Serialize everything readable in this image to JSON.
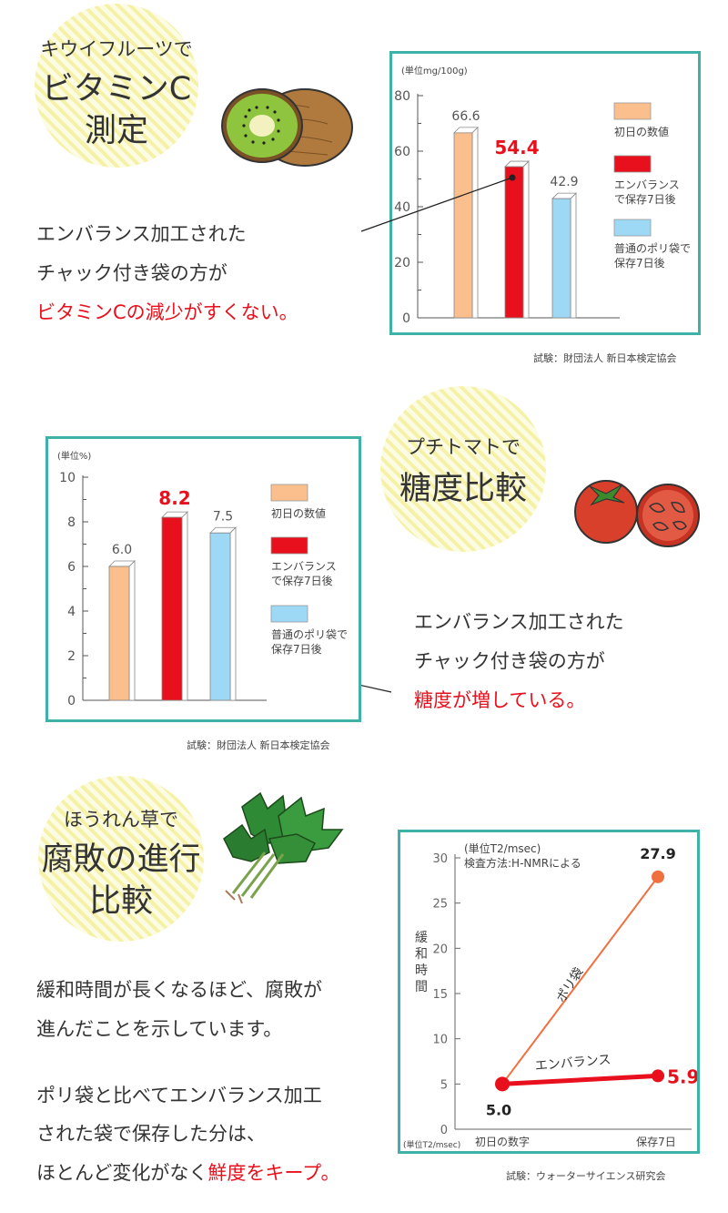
{
  "colors": {
    "accent": "#3fb2a8",
    "red": "#e8101c",
    "orange": "#fbbf8e",
    "blue": "#9dd8f4",
    "line_orange": "#f07040"
  },
  "section1": {
    "badge_small": "キウイフルーツで",
    "badge_big1": "ビタミンC",
    "badge_big2": "測定",
    "text1": "エンバランス加工された",
    "text2": "チャック付き袋の方が",
    "text3": "ビタミンCの減少がすくない。",
    "source": "試験：財団法人 新日本検定協会"
  },
  "section2": {
    "badge_small": "プチトマトで",
    "badge_big": "糖度比較",
    "text1": "エンバランス加工された",
    "text2": "チャック付き袋の方が",
    "text3": "糖度が増している。",
    "source": "試験：財団法人 新日本検定協会"
  },
  "section3": {
    "badge_small": "ほうれん草で",
    "badge_big1": "腐敗の進行",
    "badge_big2": "比較",
    "para1_line1": "緩和時間が長くなるほど、腐敗が",
    "para1_line2": "進んだことを示しています。",
    "para2_line1": "ポリ袋と比べてエンバランス加工",
    "para2_line2": "された袋で保存した分は、",
    "para2_line3_pre": "ほとんど変化がなく",
    "para2_line3_red": "鮮度をキープ。",
    "source": "試験：ウォーターサイエンス研究会"
  },
  "chart_data": [
    {
      "type": "bar",
      "unit_label": "(単位mg/100g)",
      "categories": [
        "初日の数値",
        "エンバランス\nで保存7日後",
        "普通のポリ袋で\n保存7日後"
      ],
      "values": [
        66.6,
        54.4,
        42.9
      ],
      "value_labels": [
        "66.6",
        "54.4",
        "42.9"
      ],
      "ylim": [
        0,
        80
      ],
      "yticks": [
        0,
        20,
        40,
        60,
        80
      ],
      "colors": [
        "#fbbf8e",
        "#e8101c",
        "#9dd8f4"
      ],
      "legend": [
        {
          "lines": [
            "初日の数値"
          ],
          "color": "#fbbf8e"
        },
        {
          "lines": [
            "エンバランス",
            "で保存7日後"
          ],
          "color": "#e8101c"
        },
        {
          "lines": [
            "普通のポリ袋で",
            "保存7日後"
          ],
          "color": "#9dd8f4"
        }
      ]
    },
    {
      "type": "bar",
      "unit_label": "(単位%)",
      "categories": [
        "初日の数値",
        "エンバランス\nで保存7日後",
        "普通のポリ袋で\n保存7日後"
      ],
      "values": [
        6.0,
        8.2,
        7.5
      ],
      "value_labels": [
        "6.0",
        "8.2",
        "7.5"
      ],
      "ylim": [
        0,
        10
      ],
      "yticks": [
        0,
        2,
        4,
        6,
        8,
        10
      ],
      "colors": [
        "#fbbf8e",
        "#e8101c",
        "#9dd8f4"
      ],
      "legend": [
        {
          "lines": [
            "初日の数値"
          ],
          "color": "#fbbf8e"
        },
        {
          "lines": [
            "エンバランス",
            "で保存7日後"
          ],
          "color": "#e8101c"
        },
        {
          "lines": [
            "普通のポリ袋で",
            "保存7日後"
          ],
          "color": "#9dd8f4"
        }
      ]
    },
    {
      "type": "line",
      "unit_label": "(単位T2/msec)",
      "method_label": "検査方法:H-NMRによる",
      "ylabel": "緩和時間",
      "x_unit_label": "(単位T2/msec)",
      "categories": [
        "初日の数字",
        "保存7日"
      ],
      "ylim": [
        0,
        30
      ],
      "yticks": [
        0,
        5,
        10,
        15,
        20,
        25,
        30
      ],
      "series": [
        {
          "name": "ポリ袋",
          "values": [
            5.0,
            27.9
          ],
          "value_label": "27.9",
          "color": "#f07040"
        },
        {
          "name": "エンバランス",
          "values": [
            5.0,
            5.9
          ],
          "value_label": "5.9",
          "color": "#e8101c"
        }
      ],
      "start_label": "5.0"
    }
  ]
}
